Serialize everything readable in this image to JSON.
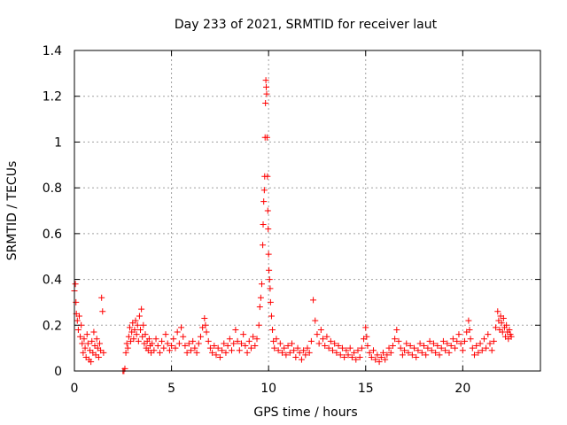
{
  "chart_data": {
    "type": "scatter",
    "title": "Day 233 of 2021, SRMTID for receiver laut",
    "xlabel": "GPS time / hours",
    "ylabel": "SRMTID / TECUs",
    "xlim": [
      0,
      24
    ],
    "ylim": [
      0,
      1.4
    ],
    "xticks": [
      0,
      5,
      10,
      15,
      20
    ],
    "xtick_labels": [
      "0",
      "5",
      "10",
      "15",
      "20"
    ],
    "yticks": [
      0,
      0.2,
      0.4,
      0.6,
      0.8,
      1,
      1.2,
      1.4
    ],
    "ytick_labels": [
      "0",
      "0.2",
      "0.4",
      "0.6",
      "0.8",
      "1",
      "1.2",
      "1.4"
    ],
    "grid": true,
    "marker": "+",
    "color": "#ff0000",
    "series": [
      {
        "name": "laut",
        "points": [
          [
            0.0,
            0.35
          ],
          [
            0.05,
            0.38
          ],
          [
            0.08,
            0.3
          ],
          [
            0.1,
            0.25
          ],
          [
            0.15,
            0.22
          ],
          [
            0.2,
            0.18
          ],
          [
            0.25,
            0.24
          ],
          [
            0.3,
            0.15
          ],
          [
            0.35,
            0.2
          ],
          [
            0.4,
            0.12
          ],
          [
            0.45,
            0.08
          ],
          [
            0.5,
            0.14
          ],
          [
            0.55,
            0.1
          ],
          [
            0.6,
            0.06
          ],
          [
            0.65,
            0.16
          ],
          [
            0.7,
            0.12
          ],
          [
            0.75,
            0.05
          ],
          [
            0.8,
            0.09
          ],
          [
            0.85,
            0.04
          ],
          [
            0.9,
            0.13
          ],
          [
            0.95,
            0.08
          ],
          [
            1.0,
            0.17
          ],
          [
            1.05,
            0.11
          ],
          [
            1.1,
            0.07
          ],
          [
            1.15,
            0.14
          ],
          [
            1.2,
            0.1
          ],
          [
            1.25,
            0.06
          ],
          [
            1.3,
            0.12
          ],
          [
            1.35,
            0.09
          ],
          [
            1.4,
            0.32
          ],
          [
            1.45,
            0.26
          ],
          [
            1.5,
            0.08
          ],
          [
            2.5,
            0.0
          ],
          [
            2.55,
            0.0
          ],
          [
            2.6,
            0.01
          ],
          [
            2.65,
            0.08
          ],
          [
            2.7,
            0.12
          ],
          [
            2.75,
            0.1
          ],
          [
            2.8,
            0.15
          ],
          [
            2.85,
            0.19
          ],
          [
            2.9,
            0.13
          ],
          [
            2.95,
            0.17
          ],
          [
            3.0,
            0.21
          ],
          [
            3.05,
            0.14
          ],
          [
            3.1,
            0.18
          ],
          [
            3.15,
            0.22
          ],
          [
            3.2,
            0.16
          ],
          [
            3.25,
            0.2
          ],
          [
            3.3,
            0.13
          ],
          [
            3.35,
            0.24
          ],
          [
            3.4,
            0.18
          ],
          [
            3.45,
            0.27
          ],
          [
            3.5,
            0.15
          ],
          [
            3.55,
            0.2
          ],
          [
            3.6,
            0.12
          ],
          [
            3.65,
            0.16
          ],
          [
            3.7,
            0.1
          ],
          [
            3.75,
            0.13
          ],
          [
            3.8,
            0.09
          ],
          [
            3.85,
            0.14
          ],
          [
            3.9,
            0.11
          ],
          [
            3.95,
            0.08
          ],
          [
            4.0,
            0.12
          ],
          [
            4.1,
            0.09
          ],
          [
            4.2,
            0.14
          ],
          [
            4.3,
            0.11
          ],
          [
            4.4,
            0.08
          ],
          [
            4.5,
            0.13
          ],
          [
            4.6,
            0.1
          ],
          [
            4.7,
            0.16
          ],
          [
            4.8,
            0.12
          ],
          [
            4.9,
            0.09
          ],
          [
            5.0,
            0.11
          ],
          [
            5.1,
            0.14
          ],
          [
            5.2,
            0.1
          ],
          [
            5.3,
            0.17
          ],
          [
            5.4,
            0.12
          ],
          [
            5.5,
            0.19
          ],
          [
            5.6,
            0.15
          ],
          [
            5.7,
            0.11
          ],
          [
            5.8,
            0.08
          ],
          [
            5.9,
            0.12
          ],
          [
            6.0,
            0.09
          ],
          [
            6.1,
            0.13
          ],
          [
            6.2,
            0.1
          ],
          [
            6.3,
            0.08
          ],
          [
            6.4,
            0.12
          ],
          [
            6.5,
            0.15
          ],
          [
            6.6,
            0.19
          ],
          [
            6.7,
            0.23
          ],
          [
            6.75,
            0.2
          ],
          [
            6.8,
            0.17
          ],
          [
            6.9,
            0.13
          ],
          [
            7.0,
            0.1
          ],
          [
            7.1,
            0.08
          ],
          [
            7.2,
            0.11
          ],
          [
            7.3,
            0.07
          ],
          [
            7.4,
            0.1
          ],
          [
            7.5,
            0.06
          ],
          [
            7.6,
            0.09
          ],
          [
            7.7,
            0.12
          ],
          [
            7.8,
            0.08
          ],
          [
            7.9,
            0.11
          ],
          [
            8.0,
            0.14
          ],
          [
            8.1,
            0.09
          ],
          [
            8.2,
            0.12
          ],
          [
            8.3,
            0.18
          ],
          [
            8.4,
            0.13
          ],
          [
            8.5,
            0.09
          ],
          [
            8.6,
            0.12
          ],
          [
            8.7,
            0.16
          ],
          [
            8.8,
            0.11
          ],
          [
            8.9,
            0.08
          ],
          [
            9.0,
            0.13
          ],
          [
            9.1,
            0.1
          ],
          [
            9.2,
            0.15
          ],
          [
            9.3,
            0.11
          ],
          [
            9.4,
            0.14
          ],
          [
            9.5,
            0.2
          ],
          [
            9.55,
            0.28
          ],
          [
            9.6,
            0.32
          ],
          [
            9.65,
            0.38
          ],
          [
            9.7,
            0.55
          ],
          [
            9.72,
            0.64
          ],
          [
            9.75,
            0.74
          ],
          [
            9.78,
            0.79
          ],
          [
            9.8,
            0.85
          ],
          [
            9.82,
            1.02
          ],
          [
            9.84,
            1.17
          ],
          [
            9.86,
            1.27
          ],
          [
            9.88,
            1.24
          ],
          [
            9.9,
            1.21
          ],
          [
            9.92,
            1.02
          ],
          [
            9.94,
            0.85
          ],
          [
            9.96,
            0.7
          ],
          [
            9.98,
            0.62
          ],
          [
            10.0,
            0.51
          ],
          [
            10.02,
            0.44
          ],
          [
            10.05,
            0.4
          ],
          [
            10.08,
            0.36
          ],
          [
            10.1,
            0.3
          ],
          [
            10.15,
            0.24
          ],
          [
            10.2,
            0.18
          ],
          [
            10.25,
            0.13
          ],
          [
            10.3,
            0.1
          ],
          [
            10.4,
            0.14
          ],
          [
            10.5,
            0.09
          ],
          [
            10.6,
            0.12
          ],
          [
            10.7,
            0.08
          ],
          [
            10.8,
            0.1
          ],
          [
            10.9,
            0.07
          ],
          [
            11.0,
            0.11
          ],
          [
            11.1,
            0.08
          ],
          [
            11.2,
            0.12
          ],
          [
            11.3,
            0.09
          ],
          [
            11.4,
            0.06
          ],
          [
            11.5,
            0.1
          ],
          [
            11.6,
            0.08
          ],
          [
            11.7,
            0.05
          ],
          [
            11.8,
            0.09
          ],
          [
            11.9,
            0.07
          ],
          [
            12.0,
            0.1
          ],
          [
            12.1,
            0.08
          ],
          [
            12.2,
            0.13
          ],
          [
            12.3,
            0.31
          ],
          [
            12.4,
            0.22
          ],
          [
            12.5,
            0.16
          ],
          [
            12.6,
            0.12
          ],
          [
            12.7,
            0.18
          ],
          [
            12.8,
            0.14
          ],
          [
            12.9,
            0.11
          ],
          [
            13.0,
            0.15
          ],
          [
            13.1,
            0.1
          ],
          [
            13.2,
            0.13
          ],
          [
            13.3,
            0.09
          ],
          [
            13.4,
            0.12
          ],
          [
            13.5,
            0.08
          ],
          [
            13.6,
            0.11
          ],
          [
            13.7,
            0.07
          ],
          [
            13.8,
            0.1
          ],
          [
            13.9,
            0.06
          ],
          [
            14.0,
            0.09
          ],
          [
            14.1,
            0.07
          ],
          [
            14.2,
            0.1
          ],
          [
            14.3,
            0.06
          ],
          [
            14.4,
            0.08
          ],
          [
            14.5,
            0.05
          ],
          [
            14.6,
            0.09
          ],
          [
            14.7,
            0.06
          ],
          [
            14.8,
            0.1
          ],
          [
            14.9,
            0.14
          ],
          [
            15.0,
            0.19
          ],
          [
            15.05,
            0.15
          ],
          [
            15.1,
            0.11
          ],
          [
            15.2,
            0.08
          ],
          [
            15.3,
            0.06
          ],
          [
            15.4,
            0.09
          ],
          [
            15.5,
            0.05
          ],
          [
            15.6,
            0.07
          ],
          [
            15.7,
            0.04
          ],
          [
            15.8,
            0.06
          ],
          [
            15.9,
            0.08
          ],
          [
            16.0,
            0.05
          ],
          [
            16.1,
            0.07
          ],
          [
            16.2,
            0.1
          ],
          [
            16.3,
            0.08
          ],
          [
            16.4,
            0.11
          ],
          [
            16.5,
            0.14
          ],
          [
            16.6,
            0.18
          ],
          [
            16.7,
            0.13
          ],
          [
            16.8,
            0.1
          ],
          [
            16.9,
            0.07
          ],
          [
            17.0,
            0.09
          ],
          [
            17.1,
            0.12
          ],
          [
            17.2,
            0.08
          ],
          [
            17.3,
            0.11
          ],
          [
            17.4,
            0.07
          ],
          [
            17.5,
            0.1
          ],
          [
            17.6,
            0.06
          ],
          [
            17.7,
            0.09
          ],
          [
            17.8,
            0.12
          ],
          [
            17.9,
            0.08
          ],
          [
            18.0,
            0.11
          ],
          [
            18.1,
            0.07
          ],
          [
            18.2,
            0.1
          ],
          [
            18.3,
            0.13
          ],
          [
            18.4,
            0.09
          ],
          [
            18.5,
            0.12
          ],
          [
            18.6,
            0.08
          ],
          [
            18.7,
            0.11
          ],
          [
            18.8,
            0.07
          ],
          [
            18.9,
            0.1
          ],
          [
            19.0,
            0.13
          ],
          [
            19.1,
            0.09
          ],
          [
            19.2,
            0.12
          ],
          [
            19.3,
            0.08
          ],
          [
            19.4,
            0.11
          ],
          [
            19.5,
            0.14
          ],
          [
            19.6,
            0.1
          ],
          [
            19.7,
            0.13
          ],
          [
            19.8,
            0.16
          ],
          [
            19.9,
            0.12
          ],
          [
            20.0,
            0.09
          ],
          [
            20.1,
            0.13
          ],
          [
            20.2,
            0.17
          ],
          [
            20.3,
            0.22
          ],
          [
            20.35,
            0.18
          ],
          [
            20.4,
            0.14
          ],
          [
            20.5,
            0.1
          ],
          [
            20.6,
            0.07
          ],
          [
            20.7,
            0.11
          ],
          [
            20.8,
            0.08
          ],
          [
            20.9,
            0.12
          ],
          [
            21.0,
            0.09
          ],
          [
            21.1,
            0.14
          ],
          [
            21.2,
            0.1
          ],
          [
            21.3,
            0.16
          ],
          [
            21.4,
            0.12
          ],
          [
            21.5,
            0.09
          ],
          [
            21.6,
            0.13
          ],
          [
            21.7,
            0.19
          ],
          [
            21.8,
            0.26
          ],
          [
            21.85,
            0.22
          ],
          [
            21.9,
            0.18
          ],
          [
            21.95,
            0.24
          ],
          [
            22.0,
            0.21
          ],
          [
            22.05,
            0.17
          ],
          [
            22.1,
            0.23
          ],
          [
            22.15,
            0.19
          ],
          [
            22.2,
            0.15
          ],
          [
            22.25,
            0.2
          ],
          [
            22.3,
            0.17
          ],
          [
            22.35,
            0.14
          ],
          [
            22.4,
            0.18
          ],
          [
            22.45,
            0.16
          ],
          [
            22.5,
            0.15
          ]
        ]
      }
    ]
  }
}
